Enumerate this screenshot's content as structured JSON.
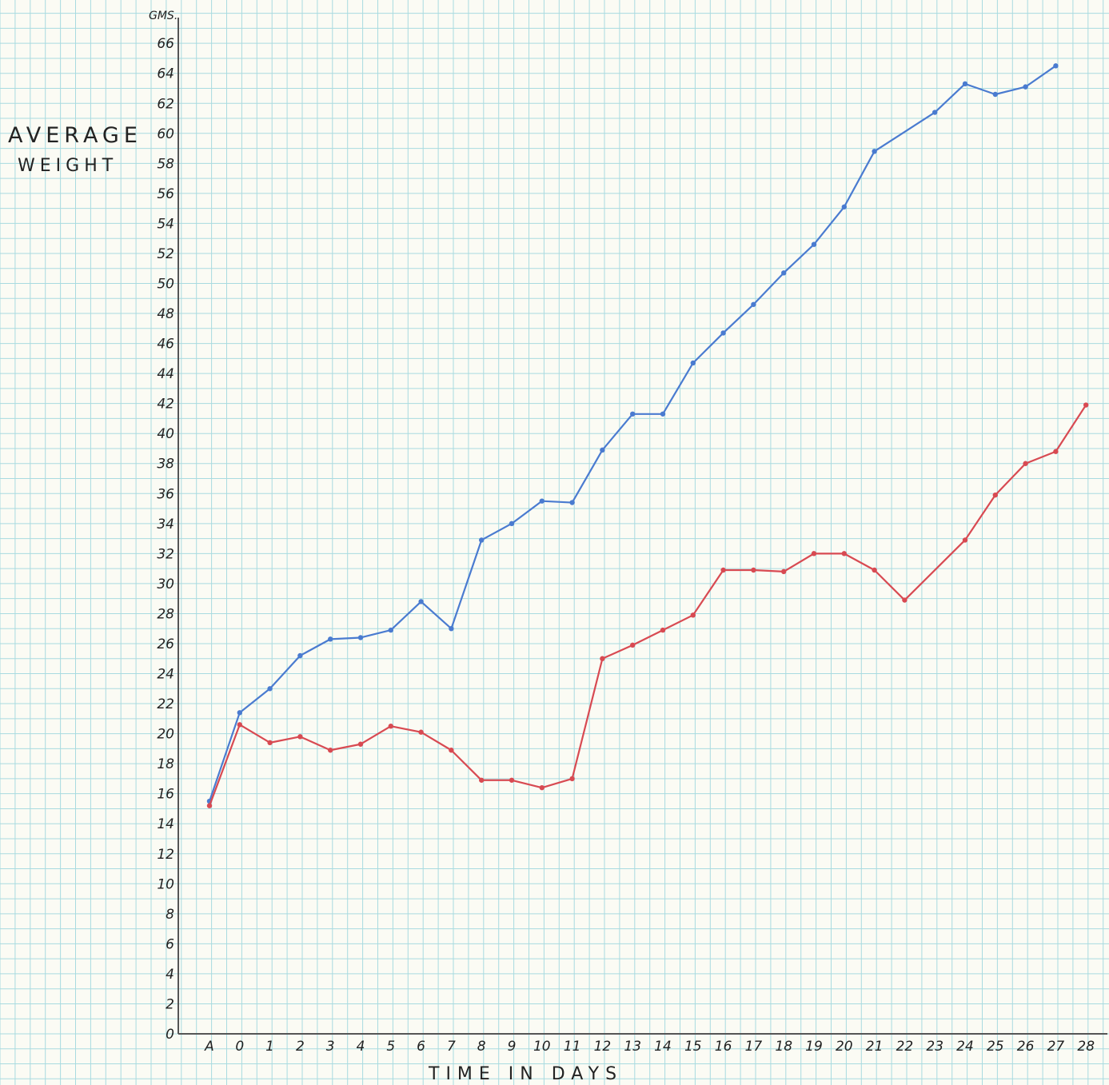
{
  "chart_data": {
    "type": "line",
    "ylabel_lines": [
      "AVERAGE",
      "WEIGHT"
    ],
    "yunit": "GMS.",
    "xlabel": "TIME IN DAYS",
    "ylim": [
      0,
      66
    ],
    "yticks": [
      0,
      2,
      4,
      6,
      8,
      10,
      12,
      14,
      16,
      18,
      20,
      22,
      24,
      26,
      28,
      30,
      32,
      34,
      36,
      38,
      40,
      42,
      44,
      46,
      48,
      50,
      52,
      54,
      56,
      58,
      60,
      62,
      64,
      66
    ],
    "categories": [
      "A",
      "0",
      "1",
      "2",
      "3",
      "4",
      "5",
      "6",
      "7",
      "8",
      "9",
      "10",
      "11",
      "12",
      "13",
      "14",
      "15",
      "16",
      "17",
      "18",
      "19",
      "20",
      "21",
      "22",
      "23",
      "24",
      "25",
      "26",
      "27",
      "28"
    ],
    "grid": true,
    "series": [
      {
        "color": "#4a7bd0",
        "values": [
          15.5,
          21.4,
          23.0,
          25.2,
          26.3,
          26.4,
          26.9,
          28.8,
          27.0,
          32.9,
          34.0,
          35.5,
          35.4,
          38.9,
          41.3,
          41.3,
          44.7,
          46.7,
          48.6,
          50.7,
          52.6,
          55.1,
          58.8,
          null,
          61.4,
          63.3,
          62.6,
          63.1,
          64.5,
          null
        ]
      },
      {
        "color": "#d84a52",
        "values": [
          15.2,
          20.6,
          19.4,
          19.8,
          18.9,
          19.3,
          20.5,
          20.1,
          18.9,
          16.9,
          16.9,
          16.4,
          17.0,
          25.0,
          25.9,
          26.9,
          27.9,
          30.9,
          30.9,
          30.8,
          32.0,
          32.0,
          30.9,
          28.9,
          null,
          32.9,
          35.9,
          38.0,
          38.8,
          41.9
        ]
      }
    ]
  },
  "paper": {
    "background": "#fbfbf4",
    "grid_color": "#a9dbe0",
    "axis_color": "#555555",
    "ink_color": "#222222"
  }
}
